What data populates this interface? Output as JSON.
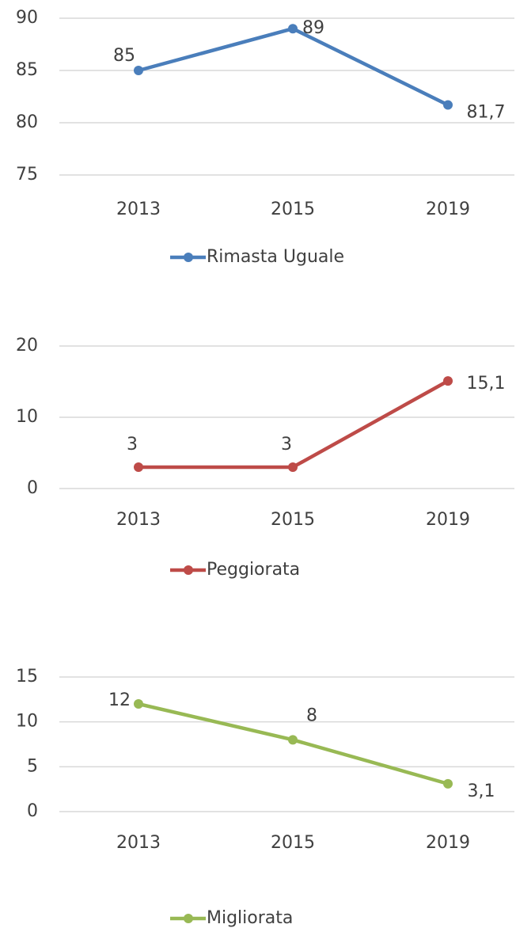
{
  "chart_data": [
    {
      "type": "line",
      "categories": [
        "2013",
        "2015",
        "2019"
      ],
      "series": [
        {
          "name": "Rimasta Uguale",
          "color": "#4a7ebb",
          "values": [
            85,
            89,
            81.7
          ],
          "value_labels": [
            "85",
            "89",
            "81,7"
          ]
        }
      ],
      "ylim": [
        75,
        90
      ],
      "yticks": [
        75,
        80,
        85,
        90
      ],
      "grid": true,
      "legend": "bottom"
    },
    {
      "type": "line",
      "categories": [
        "2013",
        "2015",
        "2019"
      ],
      "series": [
        {
          "name": "Peggiorata",
          "color": "#be4b48",
          "values": [
            3,
            3,
            15.1
          ],
          "value_labels": [
            "3",
            "3",
            "15,1"
          ]
        }
      ],
      "ylim": [
        0,
        20
      ],
      "yticks": [
        0,
        10,
        20
      ],
      "grid": true,
      "legend": "bottom"
    },
    {
      "type": "line",
      "categories": [
        "2013",
        "2015",
        "2019"
      ],
      "series": [
        {
          "name": "Migliorata",
          "color": "#98b954",
          "values": [
            12,
            8,
            3.1
          ],
          "value_labels": [
            "12",
            "8",
            "3,1"
          ]
        }
      ],
      "ylim": [
        0,
        15
      ],
      "yticks": [
        0,
        5,
        10,
        15
      ],
      "grid": true,
      "legend": "bottom"
    }
  ]
}
